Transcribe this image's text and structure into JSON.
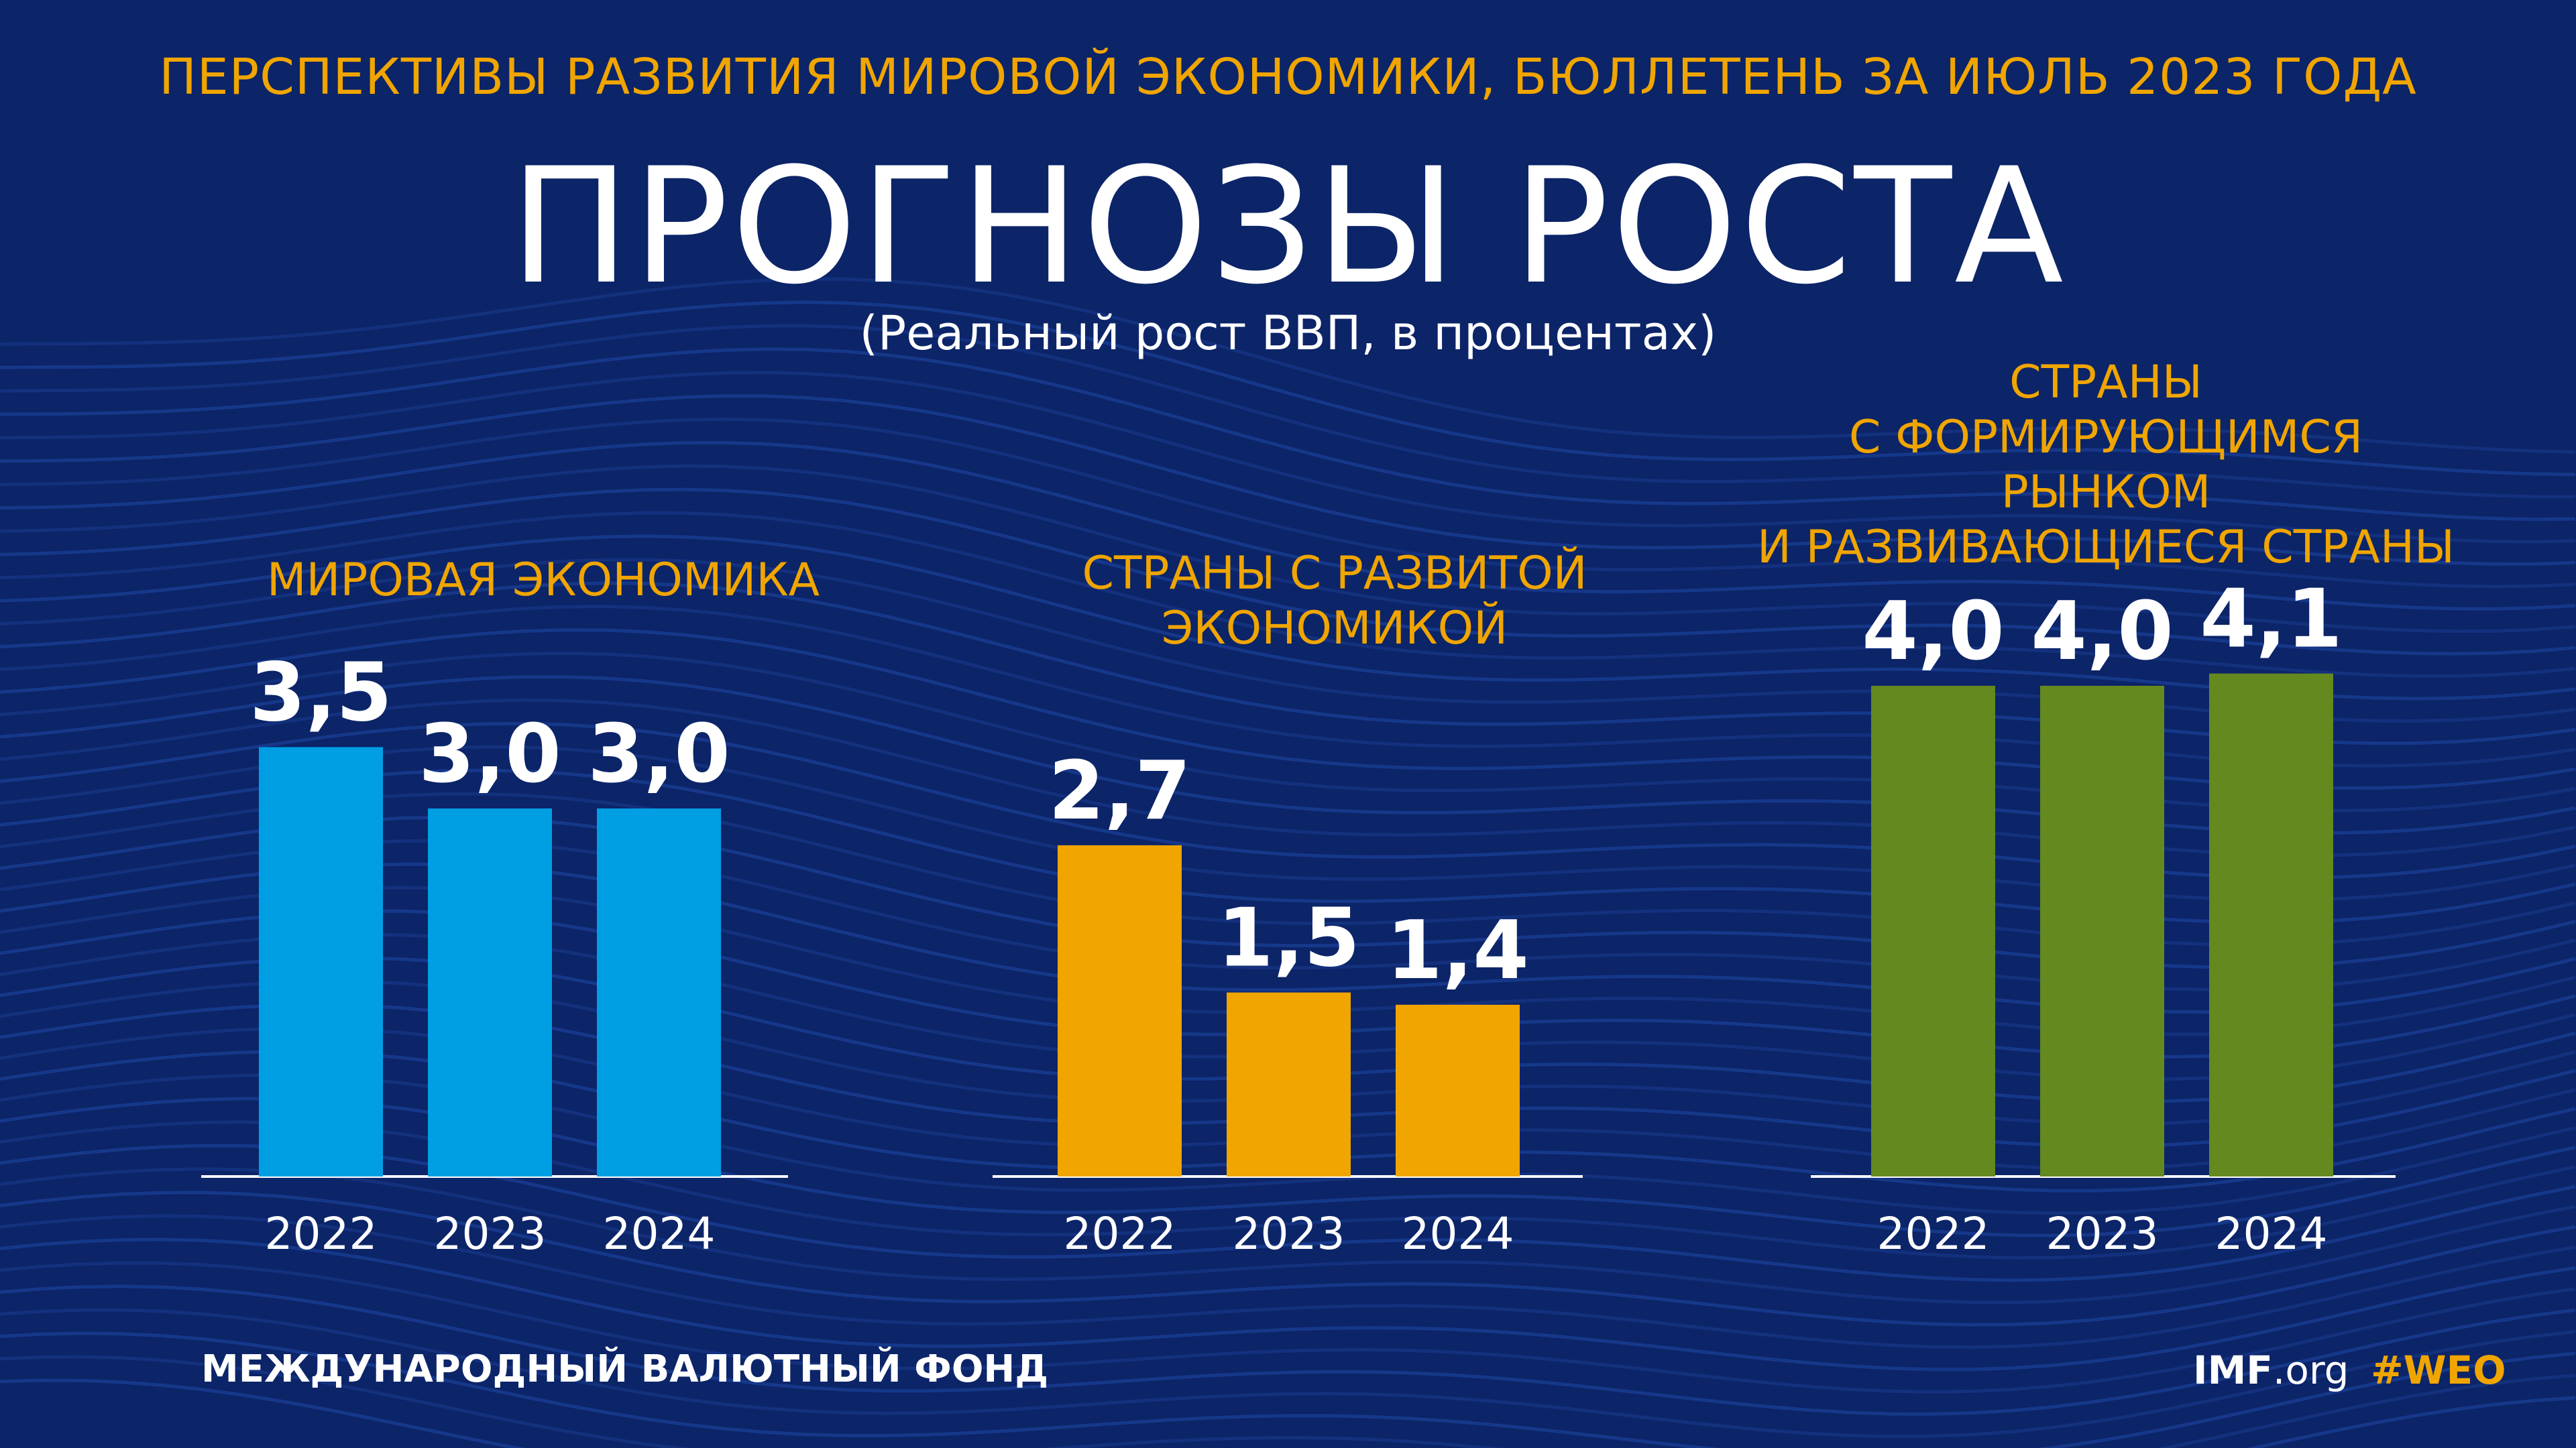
{
  "header": {
    "kicker": "ПЕРСПЕКТИВЫ РАЗВИТИЯ МИРОВОЙ ЭКОНОМИКИ, БЮЛЛЕТЕНЬ ЗА ИЮЛЬ 2023 ГОДА",
    "title": "ПРОГНОЗЫ РОСТА",
    "subtitle": "(Реальный рост ВВП, в процентах)"
  },
  "panels": [
    {
      "title_lines": [
        "МИРОВАЯ ЭКОНОМИКА"
      ]
    },
    {
      "title_lines": [
        "СТРАНЫ С РАЗВИТОЙ",
        "ЭКОНОМИКОЙ"
      ]
    },
    {
      "title_lines": [
        "СТРАНЫ",
        "С ФОРМИРУЮЩИМСЯ РЫНКОМ",
        "И РАЗВИВАЮЩИЕСЯ СТРАНЫ"
      ]
    }
  ],
  "chart_data": [
    {
      "type": "bar",
      "title": "МИРОВАЯ ЭКОНОМИКА",
      "categories": [
        "2022",
        "2023",
        "2024"
      ],
      "values": [
        3.5,
        3.0,
        3.0
      ],
      "labels": [
        "3,5",
        "3,0",
        "3,0"
      ],
      "color": "#009fe3",
      "ylim": [
        0,
        4.5
      ]
    },
    {
      "type": "bar",
      "title": "СТРАНЫ С РАЗВИТОЙ ЭКОНОМИКОЙ",
      "categories": [
        "2022",
        "2023",
        "2024"
      ],
      "values": [
        2.7,
        1.5,
        1.4
      ],
      "labels": [
        "2,7",
        "1,5",
        "1,4"
      ],
      "color": "#f0a500",
      "ylim": [
        0,
        4.5
      ]
    },
    {
      "type": "bar",
      "title": "СТРАНЫ С ФОРМИРУЮЩИМСЯ РЫНКОМ И РАЗВИВАЮЩИЕСЯ СТРАНЫ",
      "categories": [
        "2022",
        "2023",
        "2024"
      ],
      "values": [
        4.0,
        4.0,
        4.1
      ],
      "labels": [
        "4,0",
        "4,0",
        "4,1"
      ],
      "color": "#64891e",
      "ylim": [
        0,
        4.5
      ]
    }
  ],
  "footer": {
    "org": "МЕЖДУНАРОДНЫЙ ВАЛЮТНЫЙ ФОНД",
    "site_bold": "IMF",
    "site_rest": ".org",
    "hashtag": "#WEO"
  },
  "colors": {
    "background": "#0c2468",
    "accent": "#f0a500",
    "text": "#ffffff"
  }
}
